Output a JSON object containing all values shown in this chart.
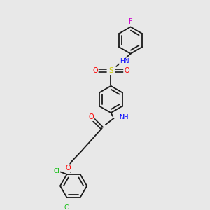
{
  "background_color": "#e8e8e8",
  "bond_color": "#1a1a1a",
  "atom_colors": {
    "N": "#0000ff",
    "O": "#ff0000",
    "S": "#cccc00",
    "F": "#cc00cc",
    "Cl": "#00bb00",
    "H": "#008080"
  },
  "figsize": [
    3.0,
    3.0
  ],
  "dpi": 100
}
